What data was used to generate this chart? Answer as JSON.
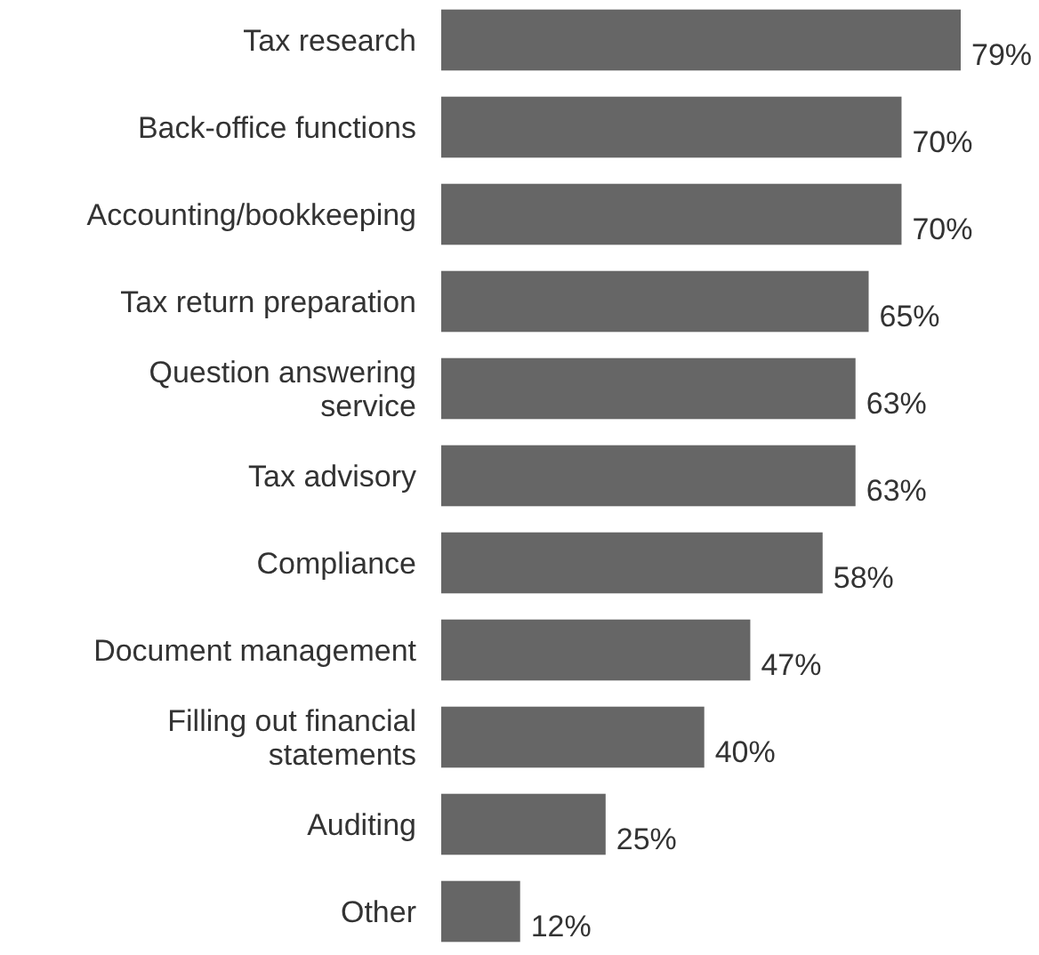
{
  "chart_data": {
    "type": "bar",
    "orientation": "horizontal",
    "value_labels": [
      "79%",
      "70%",
      "70%",
      "65%",
      "63%",
      "63%",
      "58%",
      "47%",
      "40%",
      "25%",
      "12%"
    ],
    "categories": [
      "Tax research",
      "Back-office functions",
      "Accounting/bookkeeping",
      "Tax return preparation",
      "Question answering service",
      "Tax advisory",
      "Compliance",
      "Document management",
      "Filling out financial statements",
      "Auditing",
      "Other"
    ],
    "values": [
      79,
      70,
      70,
      65,
      63,
      63,
      58,
      47,
      40,
      25,
      12
    ],
    "color": "#666666"
  }
}
